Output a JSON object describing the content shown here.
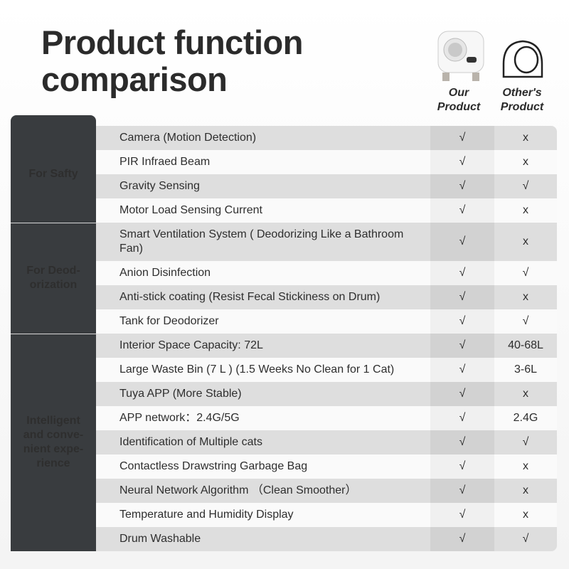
{
  "header": {
    "title": "Product function comparison",
    "columns": [
      "Our Product",
      "Other's Product"
    ]
  },
  "groups": [
    {
      "label": "For Safty",
      "rows": [
        [
          "Camera (Motion Detection)",
          "√",
          "x"
        ],
        [
          "PIR Infraed Beam",
          "√",
          "x"
        ],
        [
          "Gravity Sensing",
          "√",
          "√"
        ],
        [
          "Motor Load Sensing Current",
          "√",
          "x"
        ]
      ]
    },
    {
      "label": "For Deod-\norization",
      "rows": [
        [
          "Smart Ventilation System ( Deodorizing Like a Bathroom Fan)",
          "√",
          "x"
        ],
        [
          "Anion Disinfection",
          "√",
          "√"
        ],
        [
          "Anti-stick coating (Resist Fecal Stickiness on Drum)",
          "√",
          "x"
        ],
        [
          "Tank for Deodorizer",
          "√",
          "√"
        ]
      ]
    },
    {
      "label": "Intelligent\nand conve-\nnient expe-\nrience",
      "rows": [
        [
          "Interior Space Capacity: 72L",
          "√",
          "40-68L"
        ],
        [
          "Large Waste Bin (7 L ) (1.5 Weeks No Clean for 1 Cat)",
          "√",
          "3-6L"
        ],
        [
          "Tuya APP (More Stable)",
          "√",
          "x"
        ],
        [
          "APP network：2.4G/5G",
          "√",
          "2.4G"
        ],
        [
          "Identification of Multiple cats",
          "√",
          "√"
        ],
        [
          "Contactless Drawstring Garbage Bag",
          "√",
          "x"
        ],
        [
          "Neural Network Algorithm （Clean Smoother）",
          "√",
          "x"
        ],
        [
          "Temperature and Humidity Display",
          "√",
          "x"
        ],
        [
          "Drum Washable",
          "√",
          "√"
        ]
      ]
    }
  ]
}
